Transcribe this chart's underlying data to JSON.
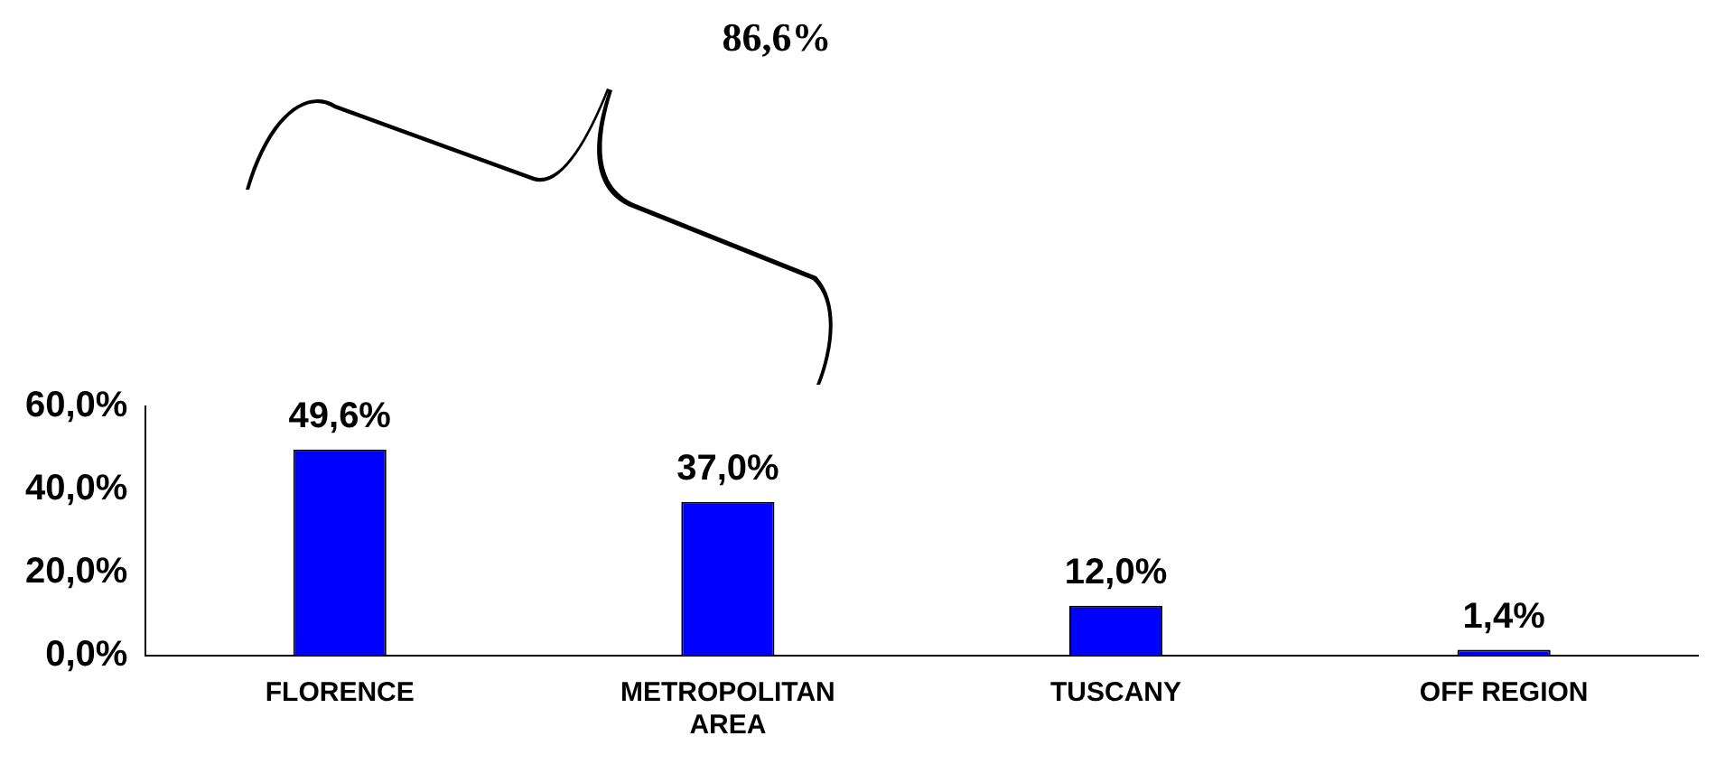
{
  "chart_data": {
    "type": "bar",
    "categories": [
      "FLORENCE",
      "METROPOLITAN AREA",
      "TUSCANY",
      "OFF REGION"
    ],
    "values": [
      49.6,
      37.0,
      12.0,
      1.4
    ],
    "color": "#0000ff",
    "value_labels": [
      "49,6%",
      "37,0%",
      "12,0%",
      "1,4%"
    ],
    "ylim": [
      0,
      60
    ],
    "yticks": [
      {
        "value": 0,
        "label": "0,0%"
      },
      {
        "value": 20,
        "label": "20,0%"
      },
      {
        "value": 40,
        "label": "40,0%"
      },
      {
        "value": 60,
        "label": "60,0%"
      }
    ],
    "annotations": [
      "86,6%"
    ],
    "grid": false,
    "legend": false
  }
}
